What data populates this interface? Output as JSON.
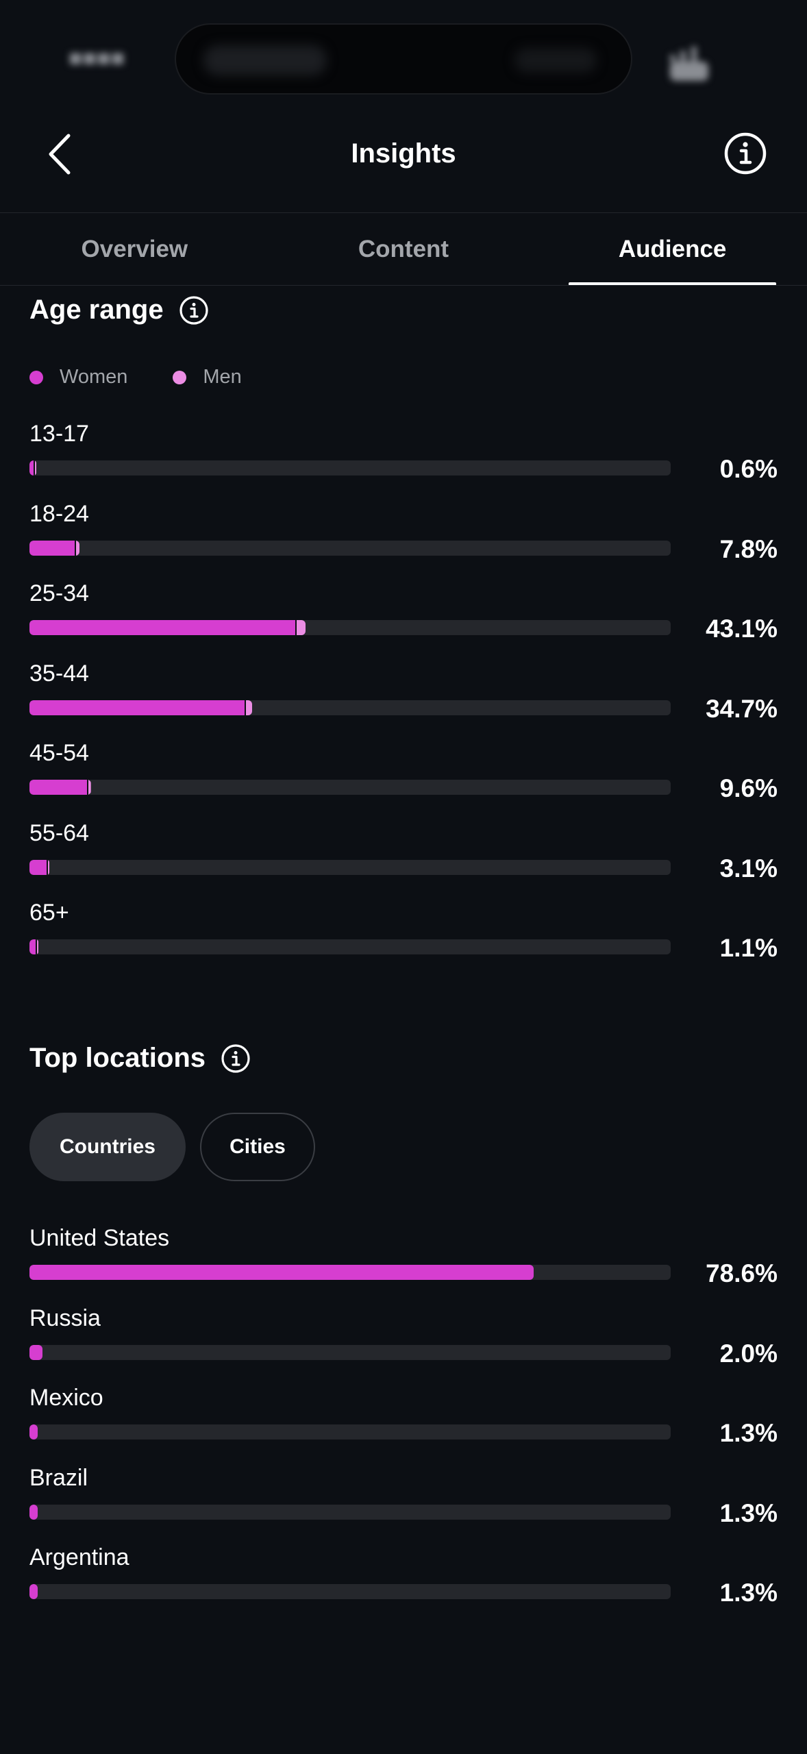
{
  "header": {
    "title": "Insights"
  },
  "tabs": [
    {
      "label": "Overview",
      "active": false
    },
    {
      "label": "Content",
      "active": false
    },
    {
      "label": "Audience",
      "active": true
    }
  ],
  "age_range": {
    "title": "Age range",
    "legend": [
      {
        "label": "Women",
        "color": "#d63ed0"
      },
      {
        "label": "Men",
        "color": "#ec8de4"
      }
    ],
    "rows": [
      {
        "label": "13-17",
        "value": "0.6%",
        "women_pct": 0.4,
        "men_pct": 0.2
      },
      {
        "label": "18-24",
        "value": "7.8%",
        "women_pct": 7.0,
        "men_pct": 0.8
      },
      {
        "label": "25-34",
        "value": "43.1%",
        "women_pct": 41.5,
        "men_pct": 1.6
      },
      {
        "label": "35-44",
        "value": "34.7%",
        "women_pct": 33.6,
        "men_pct": 1.1
      },
      {
        "label": "45-54",
        "value": "9.6%",
        "women_pct": 9.0,
        "men_pct": 0.6
      },
      {
        "label": "55-64",
        "value": "3.1%",
        "women_pct": 2.7,
        "men_pct": 0.4
      },
      {
        "label": "65+",
        "value": "1.1%",
        "women_pct": 1.0,
        "men_pct": 0.1
      }
    ]
  },
  "top_locations": {
    "title": "Top locations",
    "chips": [
      {
        "label": "Countries",
        "selected": true
      },
      {
        "label": "Cities",
        "selected": false
      }
    ],
    "rows": [
      {
        "label": "United States",
        "value": "78.6%",
        "pct": 78.6
      },
      {
        "label": "Russia",
        "value": "2.0%",
        "pct": 2.0
      },
      {
        "label": "Mexico",
        "value": "1.3%",
        "pct": 1.3
      },
      {
        "label": "Brazil",
        "value": "1.3%",
        "pct": 1.3
      },
      {
        "label": "Argentina",
        "value": "1.3%",
        "pct": 1.3
      }
    ]
  }
}
